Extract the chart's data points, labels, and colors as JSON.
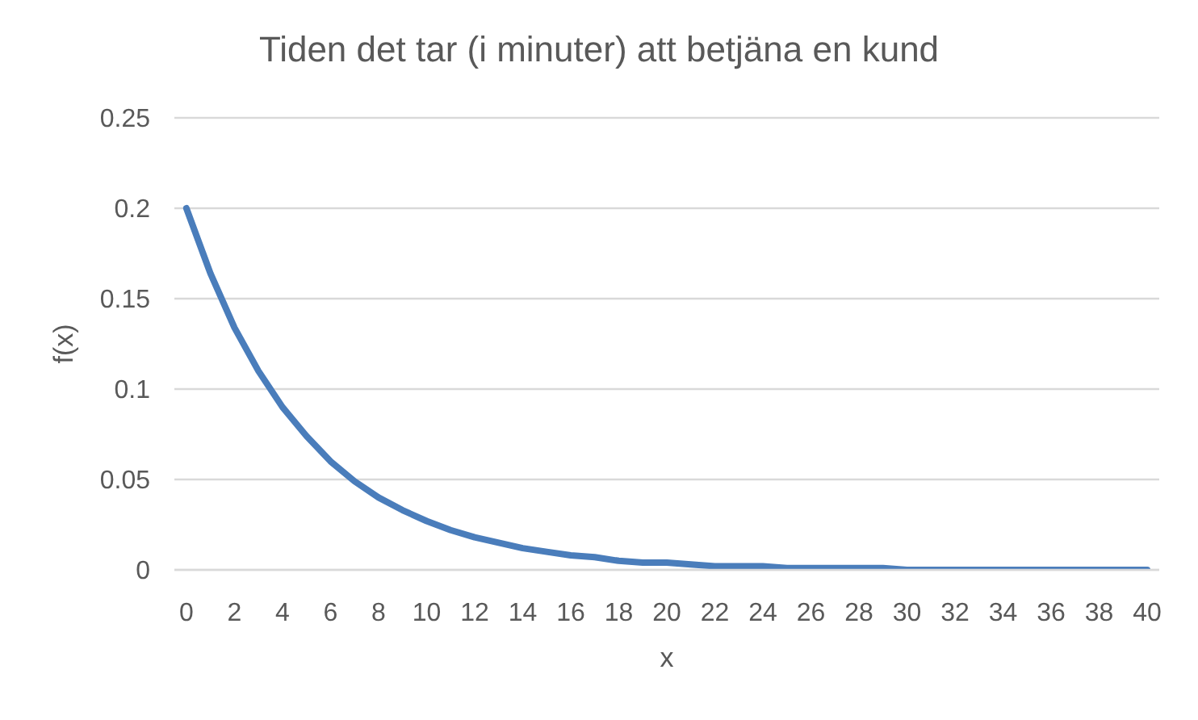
{
  "chart_data": {
    "type": "line",
    "title": "Tiden det tar (i minuter) att betjäna en kund",
    "xlabel": "x",
    "ylabel": "f(x)",
    "x": [
      0,
      1,
      2,
      3,
      4,
      5,
      6,
      7,
      8,
      9,
      10,
      11,
      12,
      13,
      14,
      15,
      16,
      17,
      18,
      19,
      20,
      21,
      22,
      23,
      24,
      25,
      26,
      27,
      28,
      29,
      30,
      31,
      32,
      33,
      34,
      35,
      36,
      37,
      38,
      39,
      40
    ],
    "series": [
      {
        "color": "#4a7dbb",
        "values": [
          0.2,
          0.164,
          0.134,
          0.11,
          0.09,
          0.074,
          0.06,
          0.049,
          0.04,
          0.033,
          0.027,
          0.022,
          0.018,
          0.015,
          0.012,
          0.01,
          0.008,
          0.007,
          0.005,
          0.004,
          0.004,
          0.003,
          0.002,
          0.002,
          0.002,
          0.001,
          0.001,
          0.001,
          0.001,
          0.001,
          0,
          0,
          0,
          0,
          0,
          0,
          0,
          0,
          0,
          0,
          0
        ]
      }
    ],
    "xlim": [
      -0.5,
      40.5
    ],
    "xticks": [
      0,
      2,
      4,
      6,
      8,
      10,
      12,
      14,
      16,
      18,
      20,
      22,
      24,
      26,
      28,
      30,
      32,
      34,
      36,
      38,
      40
    ],
    "ylim": [
      0,
      0.25
    ],
    "yticks": [
      0,
      0.05,
      0.1,
      0.15,
      0.2,
      0.25
    ],
    "grid": "y",
    "marker": "none",
    "line_style": "solid"
  }
}
